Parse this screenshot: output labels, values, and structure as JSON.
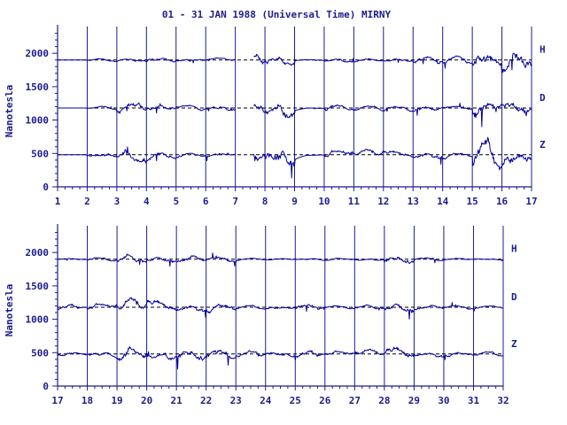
{
  "colors": {
    "ink": "#1c1c8c",
    "trace": "#0000a0",
    "baseline": "#000000"
  },
  "chart_data": {
    "type": "line",
    "title": "01 - 31 JAN 1988 (Universal Time) MIRNY",
    "ylabel": "Nanotesla",
    "ylim": [
      0,
      2400
    ],
    "yticks": [
      0,
      500,
      1000,
      1500,
      2000
    ],
    "panels": [
      {
        "xlim": [
          1,
          17
        ],
        "xticks": [
          1,
          2,
          3,
          4,
          5,
          6,
          7,
          8,
          9,
          10,
          11,
          12,
          13,
          14,
          15,
          16,
          17
        ],
        "gaps": [
          [
            7.0,
            7.6
          ]
        ],
        "series": [
          {
            "name": "H",
            "baseline": 1900,
            "activity": [
              0,
              25,
              40,
              60,
              45,
              30,
              180,
              120,
              10,
              40,
              30,
              40,
              75,
              70,
              220,
              240,
              40
            ]
          },
          {
            "name": "D",
            "baseline": 1180,
            "activity": [
              0,
              30,
              130,
              80,
              40,
              60,
              160,
              160,
              10,
              70,
              60,
              60,
              65,
              40,
              220,
              170,
              35
            ]
          },
          {
            "name": "Z",
            "baseline": 480,
            "activity": [
              0,
              70,
              150,
              70,
              45,
              60,
              170,
              210,
              10,
              100,
              80,
              60,
              90,
              60,
              310,
              170,
              50
            ]
          }
        ]
      },
      {
        "xlim": [
          17,
          32
        ],
        "xticks": [
          17,
          18,
          19,
          20,
          21,
          22,
          23,
          24,
          25,
          26,
          27,
          28,
          29,
          30,
          31,
          32
        ],
        "gaps": [],
        "series": [
          {
            "name": "H",
            "baseline": 1900,
            "activity": [
              20,
              55,
              95,
              60,
              85,
              55,
              20,
              20,
              25,
              25,
              25,
              95,
              45,
              15,
              15,
              40
            ]
          },
          {
            "name": "D",
            "baseline": 1180,
            "activity": [
              60,
              80,
              150,
              100,
              95,
              100,
              40,
              35,
              70,
              40,
              45,
              95,
              60,
              40,
              30,
              35
            ]
          },
          {
            "name": "Z",
            "baseline": 480,
            "activity": [
              50,
              85,
              160,
              105,
              130,
              130,
              60,
              55,
              75,
              60,
              75,
              110,
              70,
              55,
              50,
              55
            ]
          }
        ]
      }
    ]
  }
}
